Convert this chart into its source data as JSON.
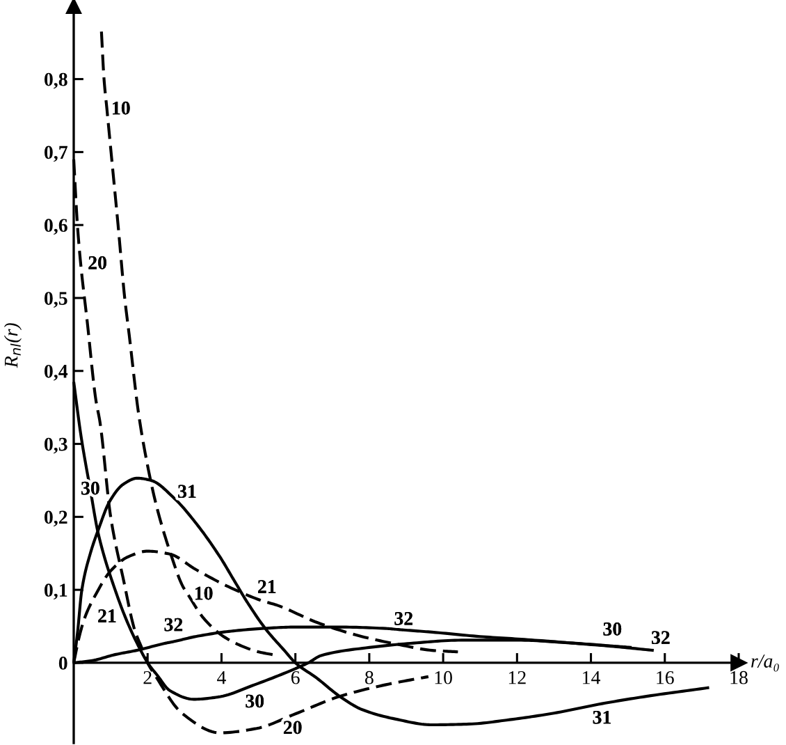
{
  "chart_data": {
    "type": "line",
    "xlabel": "r/a₀",
    "ylabel": "R$_{nl}$(r)",
    "xlim": [
      0,
      18
    ],
    "ylim": [
      -0.11,
      0.9
    ],
    "xticks": [
      2,
      4,
      6,
      8,
      10,
      12,
      14,
      16,
      18
    ],
    "yticks": [
      0,
      {
        "value": 0.1,
        "label": "0,1"
      },
      {
        "value": 0.2,
        "label": "0,2"
      },
      {
        "value": 0.3,
        "label": "0,3"
      },
      {
        "value": 0.4,
        "label": "0,4"
      },
      {
        "value": 0.5,
        "label": "0,5"
      },
      {
        "value": 0.6,
        "label": "0,6"
      },
      {
        "value": 0.7,
        "label": "0,7"
      },
      {
        "value": 0.8,
        "label": "0,8"
      }
    ],
    "series": [
      {
        "color": "#000000",
        "line_style": "dashed",
        "x": [
          0.75,
          0.82,
          0.9,
          1.01,
          1.2,
          1.38,
          1.5,
          1.76,
          2.0,
          2.24,
          2.62,
          2.95,
          3.1,
          3.5,
          4.0,
          4.5,
          5.0,
          5.4
        ],
        "values": [
          0.865,
          0.8,
          0.758,
          0.7,
          0.6,
          0.5,
          0.45,
          0.34,
          0.27,
          0.215,
          0.15,
          0.105,
          0.093,
          0.062,
          0.038,
          0.024,
          0.015,
          0.011
        ]
      },
      {
        "color": "#000000",
        "line_style": "dashed",
        "x": [
          0,
          0.1,
          0.19,
          0.36,
          0.6,
          0.71,
          1.0,
          1.35,
          1.65,
          1.87,
          2.0,
          2.2,
          2.95,
          3.95,
          4.95,
          6.0,
          7.2,
          8.45,
          9.6
        ],
        "values": [
          0.69,
          0.6,
          0.546,
          0.47,
          0.36,
          0.33,
          0.2,
          0.113,
          0.045,
          0.017,
          0,
          -0.017,
          -0.07,
          -0.096,
          -0.09,
          -0.07,
          -0.046,
          -0.03,
          -0.019
        ]
      },
      {
        "color": "#000000",
        "line_style": "dashed",
        "x": [
          0,
          0.15,
          0.3,
          0.6,
          1.0,
          1.46,
          2.0,
          2.6,
          3.3,
          4.2,
          5.1,
          5.23,
          5.5,
          6.6,
          7.8,
          8.8,
          9.7,
          10.4
        ],
        "values": [
          0,
          0.036,
          0.062,
          0.094,
          0.126,
          0.145,
          0.153,
          0.149,
          0.128,
          0.104,
          0.085,
          0.083,
          0.079,
          0.055,
          0.036,
          0.025,
          0.017,
          0.015
        ]
      },
      {
        "color": "#000000",
        "line_style": "solid",
        "x": [
          0,
          0.2,
          0.45,
          0.66,
          1.12,
          1.5,
          1.93,
          2.0,
          2.26,
          2.6,
          3.25,
          3.9,
          4.9,
          6.0,
          6.35,
          6.7,
          8.0,
          9.2,
          10.5,
          12.0,
          13.5,
          14.58,
          15.1
        ],
        "values": [
          0.385,
          0.31,
          0.237,
          0.178,
          0.1,
          0.05,
          0.006,
          0,
          -0.017,
          -0.038,
          -0.05,
          -0.047,
          -0.03,
          -0.008,
          0,
          0.01,
          0.021,
          0.027,
          0.031,
          0.031,
          0.027,
          0.023,
          0.021
        ]
      },
      {
        "color": "#000000",
        "line_style": "solid",
        "x": [
          0,
          0.1,
          0.22,
          0.45,
          0.67,
          0.97,
          1.35,
          1.72,
          2.09,
          2.73,
          3.33,
          3.96,
          4.34,
          4.71,
          5.2,
          5.7,
          6.0,
          6.58,
          7.2,
          7.8,
          8.7,
          9.7,
          10.7,
          11.8,
          13.0,
          14.3,
          15.5,
          17.2
        ],
        "values": [
          0,
          0.04,
          0.1,
          0.15,
          0.183,
          0.221,
          0.245,
          0.253,
          0.25,
          0.225,
          0.19,
          0.145,
          0.113,
          0.082,
          0.046,
          0.017,
          0,
          -0.021,
          -0.046,
          -0.064,
          -0.077,
          -0.085,
          -0.084,
          -0.078,
          -0.069,
          -0.056,
          -0.046,
          -0.034
        ]
      },
      {
        "color": "#000000",
        "line_style": "solid",
        "x": [
          0,
          0.5,
          1.1,
          1.7,
          2.5,
          2.7,
          3.3,
          4.2,
          5.1,
          6.0,
          7.2,
          8.45,
          8.93,
          9.7,
          11.0,
          12.2,
          13.5,
          14.7,
          15.7
        ],
        "values": [
          0,
          0.003,
          0.011,
          0.017,
          0.027,
          0.029,
          0.036,
          0.043,
          0.047,
          0.049,
          0.049,
          0.047,
          0.045,
          0.042,
          0.036,
          0.032,
          0.027,
          0.022,
          0.017
        ]
      }
    ],
    "annotations": [
      {
        "text": "10",
        "x": 0.9,
        "y": 0.758
      },
      {
        "text": "20",
        "x": 0.19,
        "y": 0.546
      },
      {
        "text": "30",
        "x": 0.45,
        "y": 0.237
      },
      {
        "text": "31",
        "x": 2.73,
        "y": 0.225
      },
      {
        "text": "10",
        "x": 3.1,
        "y": 0.093
      },
      {
        "text": "21",
        "x": 0.3,
        "y": 0.062
      },
      {
        "text": "32",
        "x": 2.7,
        "y": 0.029
      },
      {
        "text": "21",
        "x": 5.23,
        "y": 0.083
      },
      {
        "text": "32",
        "x": 8.93,
        "y": 0.045
      },
      {
        "text": "30",
        "x": 4.9,
        "y": -0.03
      },
      {
        "text": "20",
        "x": 6.0,
        "y": -0.07
      },
      {
        "text": "30",
        "x": 14.58,
        "y": 0.023
      },
      {
        "text": "32",
        "x": 15.7,
        "y": 0.017
      },
      {
        "text": "31",
        "x": 14.3,
        "y": -0.056
      }
    ]
  }
}
